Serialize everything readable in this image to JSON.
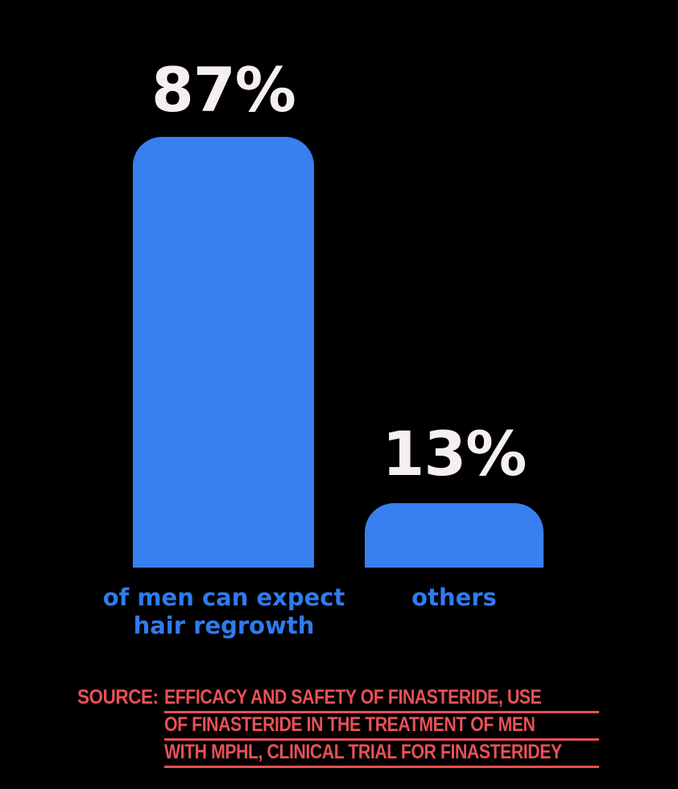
{
  "background": "#000000",
  "colors": {
    "bar": "#387FF0",
    "value_text": "#F6EFF0",
    "category_text": "#2F7BEF",
    "source_text": "#E85156"
  },
  "chart_data": {
    "type": "bar",
    "categories": [
      "of men can expect hair regrowth",
      "others"
    ],
    "values": [
      87,
      13
    ],
    "value_labels": [
      "87%",
      "13%"
    ],
    "title": "",
    "xlabel": "",
    "ylabel": "",
    "ylim": [
      0,
      100
    ],
    "grid": false,
    "legend": false,
    "bar_color": "#387FF0",
    "bar_corner": "rounded-top"
  },
  "bars": [
    {
      "value_label": "87%",
      "label_line1": "of men can expect",
      "label_line2": "hair regrowth"
    },
    {
      "value_label": "13%",
      "label_line1": "others"
    }
  ],
  "source": {
    "label": "SOURCE:",
    "lines": [
      "EFFICACY AND SAFETY OF FINASTERIDE, USE",
      "OF FINASTERIDE IN THE TREATMENT OF MEN",
      "WITH MPHL, CLINICAL TRIAL FOR FINASTERIDEY"
    ]
  }
}
